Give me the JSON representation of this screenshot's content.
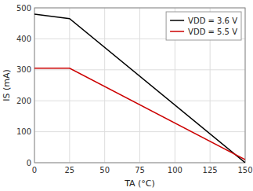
{
  "chart_data": {
    "type": "line",
    "xlabel": "TA (°C)",
    "ylabel": "IS (mA)",
    "x": [
      0,
      25,
      150
    ],
    "series": [
      {
        "name": "VDD = 3.6 V",
        "color": "#000000",
        "values": [
          480,
          465,
          0
        ]
      },
      {
        "name": "VDD = 5.5 V",
        "color": "#cc0000",
        "values": [
          305,
          305,
          10
        ]
      }
    ],
    "xlim": [
      0,
      150
    ],
    "ylim": [
      0,
      500
    ],
    "xticks": [
      0,
      25,
      50,
      75,
      100,
      125,
      150
    ],
    "yticks": [
      0,
      100,
      200,
      300,
      400,
      500
    ],
    "grid": true,
    "legend": "upper right"
  }
}
